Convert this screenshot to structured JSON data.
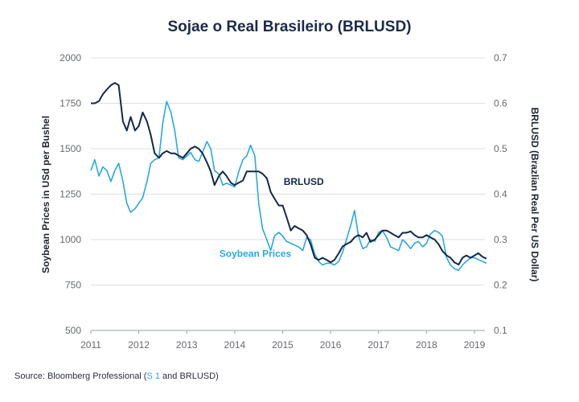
{
  "chart_data": {
    "type": "line",
    "title": "Sojae o Real Brasileiro (BRLUSD)",
    "ylabel_left": "Soybean Prices in USd per Bushel",
    "ylabel_right": "BRLUSD (Brazlian Real Per US Dollar)",
    "x_ticks": [
      "2011",
      "2012",
      "2013",
      "2014",
      "2015",
      "2016",
      "2017",
      "2018",
      "2019"
    ],
    "xlim": [
      2011,
      2019.25
    ],
    "ylim_left": [
      500,
      2000
    ],
    "ylim_right": [
      0.1,
      0.7
    ],
    "y_ticks_left": [
      "500",
      "750",
      "1000",
      "1250",
      "1500",
      "1750",
      "2000"
    ],
    "y_ticks_right": [
      "0.1",
      "0.2",
      "0.3",
      "0.4",
      "0.5",
      "0.6",
      "0.7"
    ],
    "grid": true,
    "series": [
      {
        "name": "Soybean Prices",
        "axis": "left",
        "color": "#29a8e0",
        "points": [
          [
            2011.0,
            1380
          ],
          [
            2011.08,
            1440
          ],
          [
            2011.17,
            1350
          ],
          [
            2011.25,
            1400
          ],
          [
            2011.33,
            1380
          ],
          [
            2011.42,
            1320
          ],
          [
            2011.5,
            1380
          ],
          [
            2011.58,
            1420
          ],
          [
            2011.67,
            1320
          ],
          [
            2011.75,
            1200
          ],
          [
            2011.83,
            1150
          ],
          [
            2011.92,
            1170
          ],
          [
            2012.0,
            1200
          ],
          [
            2012.08,
            1230
          ],
          [
            2012.17,
            1320
          ],
          [
            2012.25,
            1420
          ],
          [
            2012.33,
            1440
          ],
          [
            2012.42,
            1450
          ],
          [
            2012.5,
            1640
          ],
          [
            2012.58,
            1760
          ],
          [
            2012.67,
            1700
          ],
          [
            2012.75,
            1600
          ],
          [
            2012.83,
            1450
          ],
          [
            2012.92,
            1440
          ],
          [
            2013.0,
            1460
          ],
          [
            2013.08,
            1480
          ],
          [
            2013.17,
            1440
          ],
          [
            2013.25,
            1430
          ],
          [
            2013.33,
            1480
          ],
          [
            2013.42,
            1540
          ],
          [
            2013.5,
            1500
          ],
          [
            2013.58,
            1380
          ],
          [
            2013.67,
            1360
          ],
          [
            2013.75,
            1300
          ],
          [
            2013.83,
            1310
          ],
          [
            2013.92,
            1300
          ],
          [
            2014.0,
            1290
          ],
          [
            2014.08,
            1370
          ],
          [
            2014.17,
            1440
          ],
          [
            2014.25,
            1460
          ],
          [
            2014.33,
            1520
          ],
          [
            2014.42,
            1460
          ],
          [
            2014.5,
            1200
          ],
          [
            2014.58,
            1060
          ],
          [
            2014.67,
            1000
          ],
          [
            2014.75,
            940
          ],
          [
            2014.83,
            1020
          ],
          [
            2014.92,
            1040
          ],
          [
            2015.0,
            1020
          ],
          [
            2015.08,
            990
          ],
          [
            2015.17,
            980
          ],
          [
            2015.25,
            970
          ],
          [
            2015.33,
            960
          ],
          [
            2015.42,
            940
          ],
          [
            2015.5,
            1010
          ],
          [
            2015.58,
            1000
          ],
          [
            2015.67,
            920
          ],
          [
            2015.75,
            880
          ],
          [
            2015.83,
            860
          ],
          [
            2015.92,
            870
          ],
          [
            2016.0,
            870
          ],
          [
            2016.08,
            860
          ],
          [
            2016.17,
            880
          ],
          [
            2016.25,
            930
          ],
          [
            2016.33,
            1000
          ],
          [
            2016.42,
            1080
          ],
          [
            2016.5,
            1160
          ],
          [
            2016.58,
            1020
          ],
          [
            2016.67,
            950
          ],
          [
            2016.75,
            960
          ],
          [
            2016.83,
            1000
          ],
          [
            2016.92,
            990
          ],
          [
            2017.0,
            1040
          ],
          [
            2017.08,
            1050
          ],
          [
            2017.17,
            1010
          ],
          [
            2017.25,
            960
          ],
          [
            2017.33,
            950
          ],
          [
            2017.42,
            940
          ],
          [
            2017.5,
            1000
          ],
          [
            2017.58,
            980
          ],
          [
            2017.67,
            950
          ],
          [
            2017.75,
            980
          ],
          [
            2017.83,
            990
          ],
          [
            2017.92,
            960
          ],
          [
            2018.0,
            980
          ],
          [
            2018.08,
            1030
          ],
          [
            2018.17,
            1050
          ],
          [
            2018.25,
            1040
          ],
          [
            2018.33,
            1020
          ],
          [
            2018.42,
            900
          ],
          [
            2018.5,
            860
          ],
          [
            2018.58,
            840
          ],
          [
            2018.67,
            830
          ],
          [
            2018.75,
            860
          ],
          [
            2018.83,
            880
          ],
          [
            2018.92,
            900
          ],
          [
            2019.0,
            900
          ],
          [
            2019.08,
            890
          ],
          [
            2019.17,
            880
          ],
          [
            2019.25,
            870
          ]
        ]
      },
      {
        "name": "BRLUSD",
        "axis": "right",
        "color": "#14284b",
        "points": [
          [
            2011.0,
            0.6
          ],
          [
            2011.08,
            0.6
          ],
          [
            2011.17,
            0.605
          ],
          [
            2011.25,
            0.62
          ],
          [
            2011.33,
            0.63
          ],
          [
            2011.42,
            0.64
          ],
          [
            2011.5,
            0.645
          ],
          [
            2011.58,
            0.64
          ],
          [
            2011.67,
            0.56
          ],
          [
            2011.75,
            0.54
          ],
          [
            2011.83,
            0.57
          ],
          [
            2011.92,
            0.54
          ],
          [
            2012.0,
            0.55
          ],
          [
            2012.08,
            0.58
          ],
          [
            2012.17,
            0.56
          ],
          [
            2012.25,
            0.53
          ],
          [
            2012.33,
            0.49
          ],
          [
            2012.42,
            0.48
          ],
          [
            2012.5,
            0.49
          ],
          [
            2012.58,
            0.495
          ],
          [
            2012.67,
            0.49
          ],
          [
            2012.75,
            0.49
          ],
          [
            2012.83,
            0.485
          ],
          [
            2012.92,
            0.48
          ],
          [
            2013.0,
            0.49
          ],
          [
            2013.08,
            0.5
          ],
          [
            2013.17,
            0.505
          ],
          [
            2013.25,
            0.5
          ],
          [
            2013.33,
            0.49
          ],
          [
            2013.42,
            0.47
          ],
          [
            2013.5,
            0.45
          ],
          [
            2013.58,
            0.42
          ],
          [
            2013.67,
            0.44
          ],
          [
            2013.75,
            0.45
          ],
          [
            2013.83,
            0.44
          ],
          [
            2013.92,
            0.425
          ],
          [
            2014.0,
            0.42
          ],
          [
            2014.08,
            0.425
          ],
          [
            2014.17,
            0.43
          ],
          [
            2014.25,
            0.45
          ],
          [
            2014.33,
            0.45
          ],
          [
            2014.42,
            0.45
          ],
          [
            2014.5,
            0.45
          ],
          [
            2014.58,
            0.445
          ],
          [
            2014.67,
            0.435
          ],
          [
            2014.75,
            0.405
          ],
          [
            2014.83,
            0.39
          ],
          [
            2014.92,
            0.375
          ],
          [
            2015.0,
            0.375
          ],
          [
            2015.08,
            0.35
          ],
          [
            2015.17,
            0.32
          ],
          [
            2015.25,
            0.33
          ],
          [
            2015.33,
            0.325
          ],
          [
            2015.42,
            0.32
          ],
          [
            2015.5,
            0.31
          ],
          [
            2015.58,
            0.29
          ],
          [
            2015.67,
            0.26
          ],
          [
            2015.75,
            0.255
          ],
          [
            2015.83,
            0.26
          ],
          [
            2015.92,
            0.255
          ],
          [
            2016.0,
            0.25
          ],
          [
            2016.08,
            0.255
          ],
          [
            2016.17,
            0.27
          ],
          [
            2016.25,
            0.285
          ],
          [
            2016.33,
            0.29
          ],
          [
            2016.42,
            0.295
          ],
          [
            2016.5,
            0.305
          ],
          [
            2016.58,
            0.31
          ],
          [
            2016.67,
            0.305
          ],
          [
            2016.75,
            0.315
          ],
          [
            2016.83,
            0.295
          ],
          [
            2016.92,
            0.3
          ],
          [
            2017.0,
            0.31
          ],
          [
            2017.08,
            0.32
          ],
          [
            2017.17,
            0.32
          ],
          [
            2017.25,
            0.315
          ],
          [
            2017.33,
            0.31
          ],
          [
            2017.42,
            0.305
          ],
          [
            2017.5,
            0.315
          ],
          [
            2017.58,
            0.315
          ],
          [
            2017.67,
            0.318
          ],
          [
            2017.75,
            0.31
          ],
          [
            2017.83,
            0.305
          ],
          [
            2017.92,
            0.305
          ],
          [
            2018.0,
            0.31
          ],
          [
            2018.08,
            0.305
          ],
          [
            2018.17,
            0.3
          ],
          [
            2018.25,
            0.29
          ],
          [
            2018.33,
            0.275
          ],
          [
            2018.42,
            0.265
          ],
          [
            2018.5,
            0.26
          ],
          [
            2018.58,
            0.25
          ],
          [
            2018.67,
            0.245
          ],
          [
            2018.75,
            0.26
          ],
          [
            2018.83,
            0.265
          ],
          [
            2018.92,
            0.26
          ],
          [
            2019.0,
            0.265
          ],
          [
            2019.08,
            0.27
          ],
          [
            2019.17,
            0.262
          ],
          [
            2019.25,
            0.258
          ]
        ]
      }
    ],
    "annotations": [
      {
        "text": "BRLUSD",
        "series": "BRLUSD"
      },
      {
        "text": "Soybean Prices",
        "series": "Soybean Prices"
      }
    ]
  },
  "source": {
    "prefix": "Source: Bloomberg Professional (",
    "highlight": "S 1",
    "suffix": " and BRLUSD)"
  }
}
